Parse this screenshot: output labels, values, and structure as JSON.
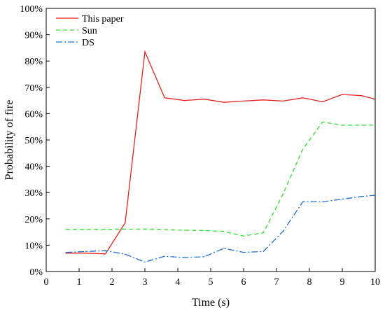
{
  "chart_data": {
    "type": "line",
    "xlabel": "Time (s)",
    "ylabel": "Probability of fire",
    "xlim": [
      0,
      10
    ],
    "ylim": [
      0,
      100
    ],
    "x_ticks": [
      0,
      1,
      2,
      3,
      4,
      5,
      6,
      7,
      8,
      9,
      10
    ],
    "x_tick_labels": [
      "0",
      "1",
      "2",
      "3",
      "4",
      "5",
      "6",
      "7",
      "8",
      "9",
      "10"
    ],
    "y_ticks": [
      0,
      10,
      20,
      30,
      40,
      50,
      60,
      70,
      80,
      90,
      100
    ],
    "y_tick_labels": [
      "0%",
      "10%",
      "20%",
      "30%",
      "40%",
      "50%",
      "60%",
      "70%",
      "80%",
      "90%",
      "100%"
    ],
    "grid": false,
    "legend_position": "top-left",
    "series": [
      {
        "name": "This paper",
        "color": "#e8211d",
        "dash": "solid",
        "points": [
          [
            0.6,
            7.0
          ],
          [
            1.2,
            7.0
          ],
          [
            1.8,
            6.7
          ],
          [
            2.4,
            18.5
          ],
          [
            3.0,
            83.5
          ],
          [
            3.6,
            66.0
          ],
          [
            4.2,
            65.0
          ],
          [
            4.8,
            65.5
          ],
          [
            5.4,
            64.3
          ],
          [
            6.0,
            64.8
          ],
          [
            6.6,
            65.2
          ],
          [
            7.2,
            64.8
          ],
          [
            7.8,
            66.0
          ],
          [
            8.4,
            64.5
          ],
          [
            9.0,
            67.3
          ],
          [
            9.6,
            66.8
          ],
          [
            10.0,
            65.5
          ]
        ]
      },
      {
        "name": "Sun",
        "color": "#2ee02e",
        "dash": "dashed",
        "points": [
          [
            0.6,
            16.0
          ],
          [
            1.2,
            16.0
          ],
          [
            1.8,
            16.0
          ],
          [
            2.4,
            16.1
          ],
          [
            3.0,
            16.1
          ],
          [
            3.6,
            15.9
          ],
          [
            4.2,
            15.7
          ],
          [
            4.8,
            15.6
          ],
          [
            5.4,
            15.2
          ],
          [
            6.0,
            13.5
          ],
          [
            6.6,
            14.7
          ],
          [
            7.2,
            29.5
          ],
          [
            7.8,
            46.5
          ],
          [
            8.4,
            56.8
          ],
          [
            9.0,
            55.6
          ],
          [
            9.6,
            55.6
          ],
          [
            10.0,
            55.6
          ]
        ]
      },
      {
        "name": "DS",
        "color": "#1a6fd6",
        "dash": "dashdot",
        "points": [
          [
            0.6,
            7.3
          ],
          [
            1.2,
            7.6
          ],
          [
            1.8,
            7.9
          ],
          [
            2.4,
            6.6
          ],
          [
            3.0,
            3.6
          ],
          [
            3.6,
            5.8
          ],
          [
            4.2,
            5.3
          ],
          [
            4.8,
            5.6
          ],
          [
            5.4,
            8.8
          ],
          [
            6.0,
            7.3
          ],
          [
            6.6,
            7.6
          ],
          [
            7.2,
            15.3
          ],
          [
            7.8,
            26.5
          ],
          [
            8.4,
            26.5
          ],
          [
            9.0,
            27.5
          ],
          [
            9.6,
            28.5
          ],
          [
            10.0,
            29.0
          ]
        ]
      }
    ]
  }
}
